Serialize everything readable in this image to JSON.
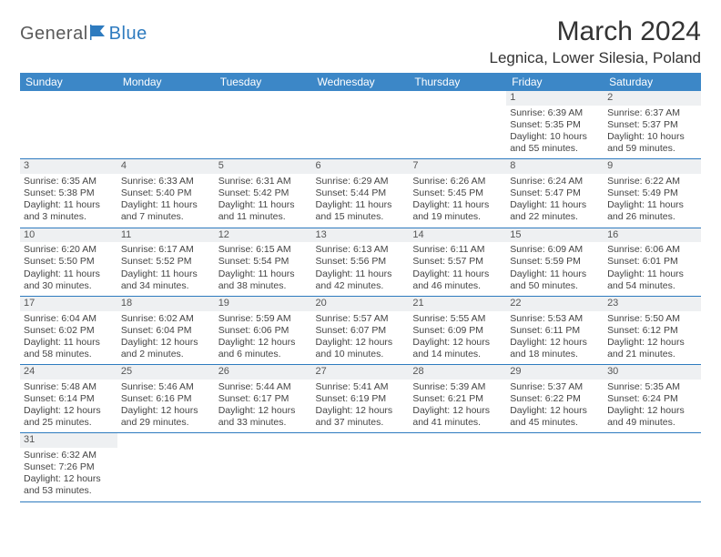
{
  "brand": {
    "part1": "General",
    "part2": "Blue"
  },
  "title": "March 2024",
  "location": "Legnica, Lower Silesia, Poland",
  "colors": {
    "header_bg": "#3c87c7",
    "border": "#2e7bbf",
    "daynum_bg": "#eef0f2",
    "text": "#444444",
    "brand_blue": "#2e7bbf"
  },
  "dayNames": [
    "Sunday",
    "Monday",
    "Tuesday",
    "Wednesday",
    "Thursday",
    "Friday",
    "Saturday"
  ],
  "weeks": [
    [
      null,
      null,
      null,
      null,
      null,
      {
        "n": "1",
        "sr": "Sunrise: 6:39 AM",
        "ss": "Sunset: 5:35 PM",
        "dl": "Daylight: 10 hours and 55 minutes."
      },
      {
        "n": "2",
        "sr": "Sunrise: 6:37 AM",
        "ss": "Sunset: 5:37 PM",
        "dl": "Daylight: 10 hours and 59 minutes."
      }
    ],
    [
      {
        "n": "3",
        "sr": "Sunrise: 6:35 AM",
        "ss": "Sunset: 5:38 PM",
        "dl": "Daylight: 11 hours and 3 minutes."
      },
      {
        "n": "4",
        "sr": "Sunrise: 6:33 AM",
        "ss": "Sunset: 5:40 PM",
        "dl": "Daylight: 11 hours and 7 minutes."
      },
      {
        "n": "5",
        "sr": "Sunrise: 6:31 AM",
        "ss": "Sunset: 5:42 PM",
        "dl": "Daylight: 11 hours and 11 minutes."
      },
      {
        "n": "6",
        "sr": "Sunrise: 6:29 AM",
        "ss": "Sunset: 5:44 PM",
        "dl": "Daylight: 11 hours and 15 minutes."
      },
      {
        "n": "7",
        "sr": "Sunrise: 6:26 AM",
        "ss": "Sunset: 5:45 PM",
        "dl": "Daylight: 11 hours and 19 minutes."
      },
      {
        "n": "8",
        "sr": "Sunrise: 6:24 AM",
        "ss": "Sunset: 5:47 PM",
        "dl": "Daylight: 11 hours and 22 minutes."
      },
      {
        "n": "9",
        "sr": "Sunrise: 6:22 AM",
        "ss": "Sunset: 5:49 PM",
        "dl": "Daylight: 11 hours and 26 minutes."
      }
    ],
    [
      {
        "n": "10",
        "sr": "Sunrise: 6:20 AM",
        "ss": "Sunset: 5:50 PM",
        "dl": "Daylight: 11 hours and 30 minutes."
      },
      {
        "n": "11",
        "sr": "Sunrise: 6:17 AM",
        "ss": "Sunset: 5:52 PM",
        "dl": "Daylight: 11 hours and 34 minutes."
      },
      {
        "n": "12",
        "sr": "Sunrise: 6:15 AM",
        "ss": "Sunset: 5:54 PM",
        "dl": "Daylight: 11 hours and 38 minutes."
      },
      {
        "n": "13",
        "sr": "Sunrise: 6:13 AM",
        "ss": "Sunset: 5:56 PM",
        "dl": "Daylight: 11 hours and 42 minutes."
      },
      {
        "n": "14",
        "sr": "Sunrise: 6:11 AM",
        "ss": "Sunset: 5:57 PM",
        "dl": "Daylight: 11 hours and 46 minutes."
      },
      {
        "n": "15",
        "sr": "Sunrise: 6:09 AM",
        "ss": "Sunset: 5:59 PM",
        "dl": "Daylight: 11 hours and 50 minutes."
      },
      {
        "n": "16",
        "sr": "Sunrise: 6:06 AM",
        "ss": "Sunset: 6:01 PM",
        "dl": "Daylight: 11 hours and 54 minutes."
      }
    ],
    [
      {
        "n": "17",
        "sr": "Sunrise: 6:04 AM",
        "ss": "Sunset: 6:02 PM",
        "dl": "Daylight: 11 hours and 58 minutes."
      },
      {
        "n": "18",
        "sr": "Sunrise: 6:02 AM",
        "ss": "Sunset: 6:04 PM",
        "dl": "Daylight: 12 hours and 2 minutes."
      },
      {
        "n": "19",
        "sr": "Sunrise: 5:59 AM",
        "ss": "Sunset: 6:06 PM",
        "dl": "Daylight: 12 hours and 6 minutes."
      },
      {
        "n": "20",
        "sr": "Sunrise: 5:57 AM",
        "ss": "Sunset: 6:07 PM",
        "dl": "Daylight: 12 hours and 10 minutes."
      },
      {
        "n": "21",
        "sr": "Sunrise: 5:55 AM",
        "ss": "Sunset: 6:09 PM",
        "dl": "Daylight: 12 hours and 14 minutes."
      },
      {
        "n": "22",
        "sr": "Sunrise: 5:53 AM",
        "ss": "Sunset: 6:11 PM",
        "dl": "Daylight: 12 hours and 18 minutes."
      },
      {
        "n": "23",
        "sr": "Sunrise: 5:50 AM",
        "ss": "Sunset: 6:12 PM",
        "dl": "Daylight: 12 hours and 21 minutes."
      }
    ],
    [
      {
        "n": "24",
        "sr": "Sunrise: 5:48 AM",
        "ss": "Sunset: 6:14 PM",
        "dl": "Daylight: 12 hours and 25 minutes."
      },
      {
        "n": "25",
        "sr": "Sunrise: 5:46 AM",
        "ss": "Sunset: 6:16 PM",
        "dl": "Daylight: 12 hours and 29 minutes."
      },
      {
        "n": "26",
        "sr": "Sunrise: 5:44 AM",
        "ss": "Sunset: 6:17 PM",
        "dl": "Daylight: 12 hours and 33 minutes."
      },
      {
        "n": "27",
        "sr": "Sunrise: 5:41 AM",
        "ss": "Sunset: 6:19 PM",
        "dl": "Daylight: 12 hours and 37 minutes."
      },
      {
        "n": "28",
        "sr": "Sunrise: 5:39 AM",
        "ss": "Sunset: 6:21 PM",
        "dl": "Daylight: 12 hours and 41 minutes."
      },
      {
        "n": "29",
        "sr": "Sunrise: 5:37 AM",
        "ss": "Sunset: 6:22 PM",
        "dl": "Daylight: 12 hours and 45 minutes."
      },
      {
        "n": "30",
        "sr": "Sunrise: 5:35 AM",
        "ss": "Sunset: 6:24 PM",
        "dl": "Daylight: 12 hours and 49 minutes."
      }
    ],
    [
      {
        "n": "31",
        "sr": "Sunrise: 6:32 AM",
        "ss": "Sunset: 7:26 PM",
        "dl": "Daylight: 12 hours and 53 minutes."
      },
      null,
      null,
      null,
      null,
      null,
      null
    ]
  ]
}
